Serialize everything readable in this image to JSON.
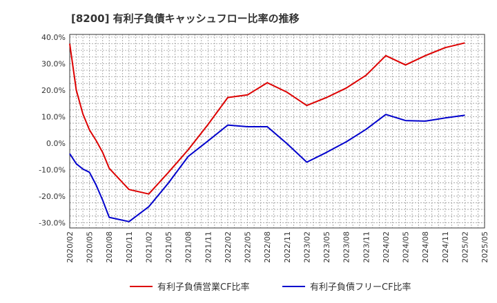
{
  "chart_data": {
    "type": "line",
    "title": "[8200]  有利子負債キャッシュフロー比率の推移",
    "x": [
      "2020/02",
      "2020/03",
      "2020/04",
      "2020/05",
      "2020/06",
      "2020/07",
      "2020/08",
      "2020/11",
      "2021/02",
      "2021/05",
      "2021/08",
      "2021/11",
      "2022/02",
      "2022/05",
      "2022/08",
      "2022/11",
      "2023/02",
      "2023/05",
      "2023/08",
      "2023/11",
      "2024/02",
      "2024/05",
      "2024/08",
      "2024/11",
      "2025/02"
    ],
    "xticks": [
      "2020/02",
      "2020/05",
      "2020/08",
      "2020/11",
      "2021/02",
      "2021/05",
      "2021/08",
      "2021/11",
      "2022/02",
      "2022/05",
      "2022/08",
      "2022/11",
      "2023/02",
      "2023/05",
      "2023/08",
      "2023/11",
      "2024/02",
      "2024/05",
      "2024/08",
      "2024/11",
      "2025/02",
      "2025/05"
    ],
    "yticks": [
      "40.0%",
      "30.0%",
      "20.0%",
      "10.0%",
      "0.0%",
      "-10.0%",
      "-20.0%",
      "-30.0%"
    ],
    "ylim": [
      -32,
      41
    ],
    "grid": true,
    "legend_position": "bottom",
    "series": [
      {
        "name": "有利子負債営業CF比率",
        "color": "#dd0000",
        "values": [
          37.5,
          20.0,
          11.0,
          5.0,
          1.0,
          -3.5,
          -9.5,
          -17.5,
          -19.2,
          -11.0,
          -2.5,
          7.0,
          17.2,
          18.2,
          22.8,
          19.2,
          14.2,
          17.2,
          20.8,
          25.6,
          33.0,
          29.5,
          33.0,
          36.0,
          37.8
        ]
      },
      {
        "name": "有利子負債フリーCF比率",
        "color": "#0000cc",
        "values": [
          -4.0,
          -7.8,
          -9.8,
          -11.0,
          -15.8,
          -21.5,
          -28.0,
          -29.6,
          -24.0,
          -15.0,
          -5.0,
          0.8,
          6.8,
          6.2,
          6.2,
          -0.2,
          -7.2,
          -3.5,
          0.5,
          5.2,
          10.8,
          8.5,
          8.3,
          9.5,
          10.5
        ]
      }
    ]
  }
}
